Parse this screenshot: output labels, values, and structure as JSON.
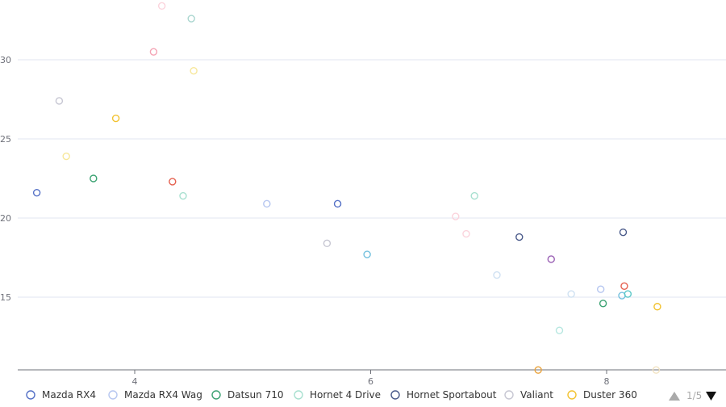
{
  "chart_data": {
    "type": "scatter",
    "x_axis": {
      "ticks": [
        4,
        6,
        8
      ],
      "range": [
        2.9,
        8.9
      ]
    },
    "y_axis": {
      "ticks": [
        15,
        20,
        25,
        30
      ],
      "range": [
        10.4,
        33.5
      ]
    },
    "grid": {
      "horizontal": true,
      "vertical": false
    },
    "legend_position": "bottom",
    "series": [
      {
        "name": "Mazda RX4",
        "color": "#5470c6",
        "points": [
          [
            3.17,
            21.6
          ],
          [
            5.72,
            20.9
          ]
        ]
      },
      {
        "name": "Mazda RX4 Wag",
        "color": "#b6c6f0",
        "points": [
          [
            5.12,
            20.9
          ],
          [
            7.95,
            15.5
          ]
        ]
      },
      {
        "name": "Datsun 710",
        "color": "#3ba272",
        "points": [
          [
            3.65,
            22.5
          ],
          [
            7.97,
            14.6
          ]
        ]
      },
      {
        "name": "Hornet 4 Drive",
        "color": "#a8e0d0",
        "points": [
          [
            4.41,
            21.4
          ],
          [
            6.88,
            21.4
          ]
        ]
      },
      {
        "name": "Hornet Sportabout",
        "color": "#4a5a8a",
        "points": [
          [
            7.26,
            18.8
          ],
          [
            8.14,
            19.1
          ]
        ]
      },
      {
        "name": "Valiant",
        "color": "#c6c6d2",
        "points": [
          [
            3.36,
            27.4
          ],
          [
            5.63,
            18.4
          ]
        ]
      },
      {
        "name": "Duster 360",
        "color": "#f2c230",
        "points": [
          [
            3.84,
            26.3
          ],
          [
            8.43,
            14.4
          ]
        ]
      },
      {
        "name": "",
        "color": "#f7e79a",
        "points": [
          [
            3.42,
            23.9
          ],
          [
            4.5,
            29.3
          ]
        ]
      },
      {
        "name": "",
        "color": "#f4a3b4",
        "points": [
          [
            4.16,
            30.5
          ]
        ]
      },
      {
        "name": "",
        "color": "#fbd3dc",
        "points": [
          [
            4.23,
            33.4
          ],
          [
            6.72,
            20.1
          ],
          [
            6.81,
            19.0
          ]
        ]
      },
      {
        "name": "",
        "color": "#a9d6cf",
        "points": [
          [
            4.48,
            32.6
          ]
        ]
      },
      {
        "name": "",
        "color": "#e5604f",
        "points": [
          [
            4.32,
            22.3
          ],
          [
            8.15,
            15.7
          ]
        ]
      },
      {
        "name": "",
        "color": "#73c0de",
        "points": [
          [
            5.97,
            17.7
          ],
          [
            8.13,
            15.1
          ]
        ]
      },
      {
        "name": "",
        "color": "#cfe1f2",
        "points": [
          [
            7.07,
            16.4
          ],
          [
            7.7,
            15.2
          ]
        ]
      },
      {
        "name": "",
        "color": "#9a60b4",
        "points": [
          [
            7.53,
            17.4
          ]
        ]
      },
      {
        "name": "",
        "color": "#b6e7e0",
        "points": [
          [
            7.6,
            12.9
          ]
        ]
      },
      {
        "name": "",
        "color": "#5bc8c8",
        "points": [
          [
            8.18,
            15.2
          ]
        ]
      },
      {
        "name": "",
        "color": "#e9a23b",
        "points": [
          [
            7.42,
            10.4
          ]
        ]
      },
      {
        "name": "",
        "color": "#f2e3c2",
        "points": [
          [
            8.42,
            10.4
          ]
        ]
      }
    ],
    "legend": {
      "visible_count": 7,
      "page": "1/5"
    }
  }
}
